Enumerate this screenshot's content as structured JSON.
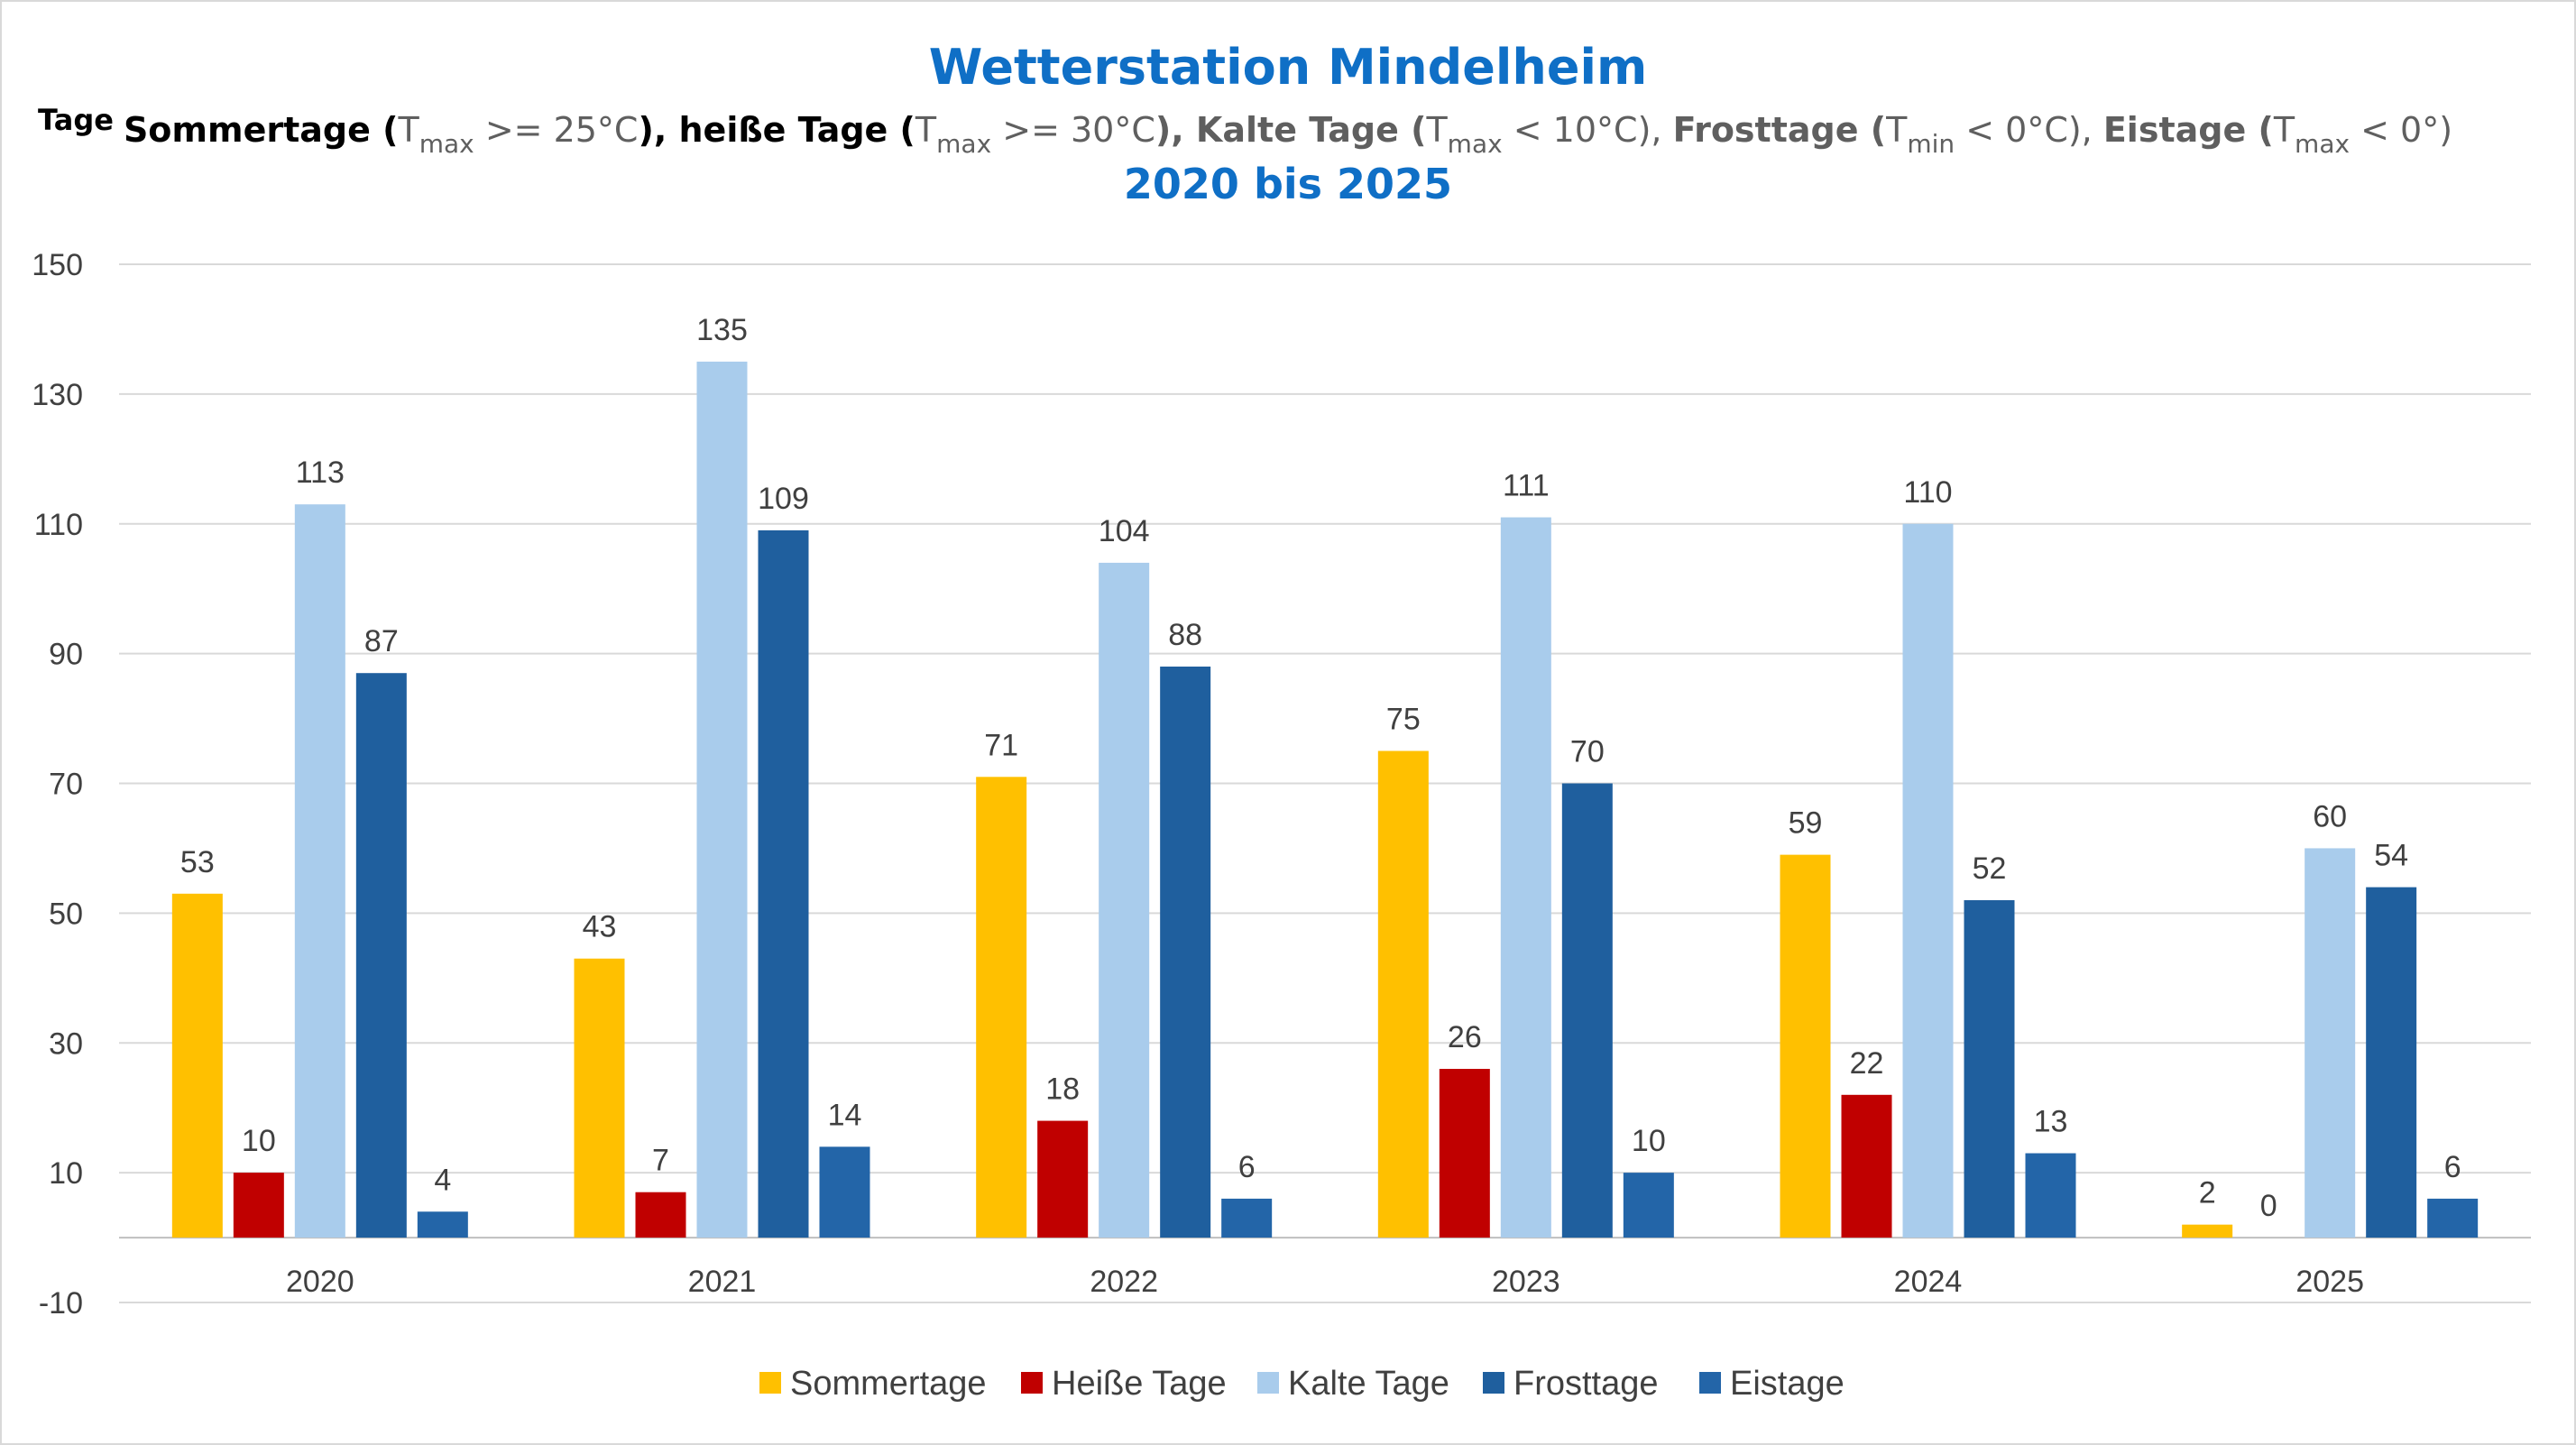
{
  "chart_data": {
    "type": "bar",
    "title": "Wetterstation Mindelheim",
    "subtitle_parts": [
      {
        "text": "Sommertage (",
        "style": "bold"
      },
      {
        "text": "T",
        "style": "grey"
      },
      {
        "text": "max",
        "style": "grey-sub"
      },
      {
        "text": " >= 25°C",
        "style": "grey"
      },
      {
        "text": "), heiße Tage (",
        "style": "bold"
      },
      {
        "text": "T",
        "style": "grey"
      },
      {
        "text": "max",
        "style": "grey-sub"
      },
      {
        "text": " >= 30°C",
        "style": "grey"
      },
      {
        "text": "), Kalte Tage (",
        "style": "grey-bold"
      },
      {
        "text": "T",
        "style": "grey"
      },
      {
        "text": "max",
        "style": "grey-sub"
      },
      {
        "text": " < 10°C), ",
        "style": "grey"
      },
      {
        "text": "Frosttage (",
        "style": "grey-bold"
      },
      {
        "text": "T",
        "style": "grey"
      },
      {
        "text": "min",
        "style": "grey-sub"
      },
      {
        "text": " < 0°C), ",
        "style": "grey"
      },
      {
        "text": "Eistage (",
        "style": "grey-bold"
      },
      {
        "text": "T",
        "style": "grey"
      },
      {
        "text": "max",
        "style": "grey-sub"
      },
      {
        "text": " < 0°)",
        "style": "grey"
      }
    ],
    "range_label": "2020 bis 2025",
    "ylabel": "Tage",
    "xlabel": "",
    "ylim": [
      -10,
      150
    ],
    "yticks": [
      -10,
      10,
      30,
      50,
      70,
      90,
      110,
      130,
      150
    ],
    "grid": true,
    "legend_position": "bottom",
    "categories": [
      "2020",
      "2021",
      "2022",
      "2023",
      "2024",
      "2025"
    ],
    "series": [
      {
        "name": "Sommertage",
        "color": "#FFC000",
        "values": [
          53,
          43,
          71,
          75,
          59,
          2
        ]
      },
      {
        "name": "Heiße Tage",
        "color": "#C00000",
        "values": [
          10,
          7,
          18,
          26,
          22,
          0
        ]
      },
      {
        "name": "Kalte Tage",
        "color": "#A9CCEC",
        "values": [
          113,
          135,
          104,
          111,
          110,
          60
        ]
      },
      {
        "name": "Frosttage",
        "color": "#1F5F9E",
        "values": [
          87,
          109,
          88,
          70,
          52,
          54
        ]
      },
      {
        "name": "Eistage",
        "color": "#2365A8",
        "values": [
          4,
          14,
          6,
          10,
          13,
          6
        ]
      }
    ],
    "data_labels": true
  }
}
